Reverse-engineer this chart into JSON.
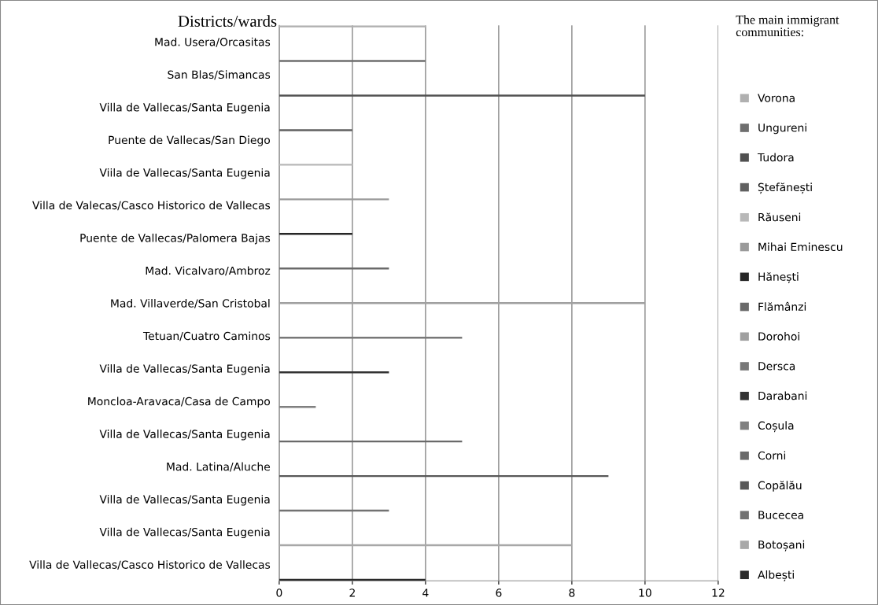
{
  "chart_data": {
    "type": "bar",
    "orientation": "horizontal",
    "ylabel": "Districts/wards",
    "legend_title": "The main immigrant communities:",
    "categories": [
      "Mad. Usera/Orcasitas",
      "San Blas/Simancas",
      "Villa de Vallecas/Santa Eugenia",
      "Puente de Vallecas/San Diego",
      "Viila de Vallecas/Santa Eugenia",
      "Villa de Valecas/Casco Historico de Vallecas",
      "Puente de Vallecas/Palomera Bajas",
      "Mad. Vicalvaro/Ambroz",
      "Mad. Villaverde/San Cristobal",
      "Tetuan/Cuatro Caminos",
      "Villa de Vallecas/Santa Eugenia",
      "Moncloa-Aravaca/Casa de Campo",
      "Villa de Vallecas/Santa Eugenia",
      "Mad. Latina/Aluche",
      "Villa de Vallecas/Santa Eugenia",
      "Villa de Vallecas/Santa Eugenia",
      "Villa de Vallecas/Casco Historico de Vallecas"
    ],
    "series": [
      {
        "name": "Vorona",
        "color": "#b0b0b0",
        "values": [
          4,
          null,
          null,
          null,
          null,
          null,
          null,
          null,
          null,
          null,
          null,
          null,
          null,
          null,
          null,
          null,
          null
        ]
      },
      {
        "name": "Ungureni",
        "color": "#6e6e6e",
        "values": [
          null,
          4,
          null,
          null,
          null,
          null,
          null,
          null,
          null,
          null,
          null,
          null,
          null,
          null,
          null,
          null,
          null
        ]
      },
      {
        "name": "Tudora",
        "color": "#505050",
        "values": [
          null,
          null,
          10,
          null,
          null,
          null,
          null,
          null,
          null,
          null,
          null,
          null,
          null,
          null,
          null,
          null,
          null
        ]
      },
      {
        "name": "Ștefănești",
        "color": "#606060",
        "values": [
          null,
          null,
          null,
          2,
          null,
          null,
          null,
          null,
          null,
          null,
          null,
          null,
          null,
          null,
          null,
          null,
          null
        ]
      },
      {
        "name": "Răuseni",
        "color": "#b8b8b8",
        "values": [
          null,
          null,
          null,
          null,
          2,
          null,
          null,
          null,
          null,
          null,
          null,
          null,
          null,
          null,
          null,
          null,
          null
        ]
      },
      {
        "name": "Mihai Eminescu",
        "color": "#9a9a9a",
        "values": [
          null,
          null,
          null,
          null,
          null,
          3,
          null,
          null,
          null,
          null,
          null,
          null,
          null,
          null,
          null,
          null,
          null
        ]
      },
      {
        "name": "Hănești",
        "color": "#262626",
        "values": [
          null,
          null,
          null,
          null,
          null,
          null,
          2,
          null,
          null,
          null,
          null,
          null,
          null,
          null,
          null,
          null,
          null
        ]
      },
      {
        "name": "Flămânzi",
        "color": "#6a6a6a",
        "values": [
          null,
          null,
          null,
          null,
          null,
          null,
          null,
          3,
          null,
          null,
          null,
          null,
          null,
          null,
          null,
          null,
          null
        ]
      },
      {
        "name": "Dorohoi",
        "color": "#a0a0a0",
        "values": [
          null,
          null,
          null,
          null,
          null,
          null,
          null,
          null,
          10,
          null,
          null,
          null,
          null,
          null,
          null,
          null,
          null
        ]
      },
      {
        "name": "Dersca",
        "color": "#787878",
        "values": [
          null,
          null,
          null,
          null,
          null,
          null,
          null,
          null,
          null,
          5,
          null,
          null,
          null,
          null,
          null,
          null,
          null
        ]
      },
      {
        "name": "Darabani",
        "color": "#333333",
        "values": [
          null,
          null,
          null,
          null,
          null,
          null,
          null,
          null,
          null,
          null,
          3,
          null,
          null,
          null,
          null,
          null,
          null
        ]
      },
      {
        "name": "Coșula",
        "color": "#808080",
        "values": [
          null,
          null,
          null,
          null,
          null,
          null,
          null,
          null,
          null,
          null,
          null,
          1,
          null,
          null,
          null,
          null,
          null
        ]
      },
      {
        "name": "Corni",
        "color": "#6a6a6a",
        "values": [
          null,
          null,
          null,
          null,
          null,
          null,
          null,
          null,
          null,
          null,
          null,
          null,
          5,
          null,
          null,
          null,
          null
        ]
      },
      {
        "name": "Copălău",
        "color": "#585858",
        "values": [
          null,
          null,
          null,
          null,
          null,
          null,
          null,
          null,
          null,
          null,
          null,
          null,
          null,
          9,
          null,
          null,
          null
        ]
      },
      {
        "name": "Bucecea",
        "color": "#727272",
        "values": [
          null,
          null,
          null,
          null,
          null,
          null,
          null,
          null,
          null,
          null,
          null,
          null,
          null,
          null,
          3,
          null,
          null
        ]
      },
      {
        "name": "Botoșani",
        "color": "#a8a8a8",
        "values": [
          null,
          null,
          null,
          null,
          null,
          null,
          null,
          null,
          null,
          null,
          null,
          null,
          null,
          null,
          null,
          8,
          null
        ]
      },
      {
        "name": "Albești",
        "color": "#2a2a2a",
        "values": [
          null,
          null,
          null,
          null,
          null,
          null,
          null,
          null,
          null,
          null,
          null,
          null,
          null,
          null,
          null,
          null,
          4
        ]
      }
    ],
    "xlim": [
      0,
      12
    ],
    "xticks": [
      0,
      2,
      4,
      6,
      8,
      10,
      12
    ],
    "grid": "x",
    "legend": "right"
  }
}
